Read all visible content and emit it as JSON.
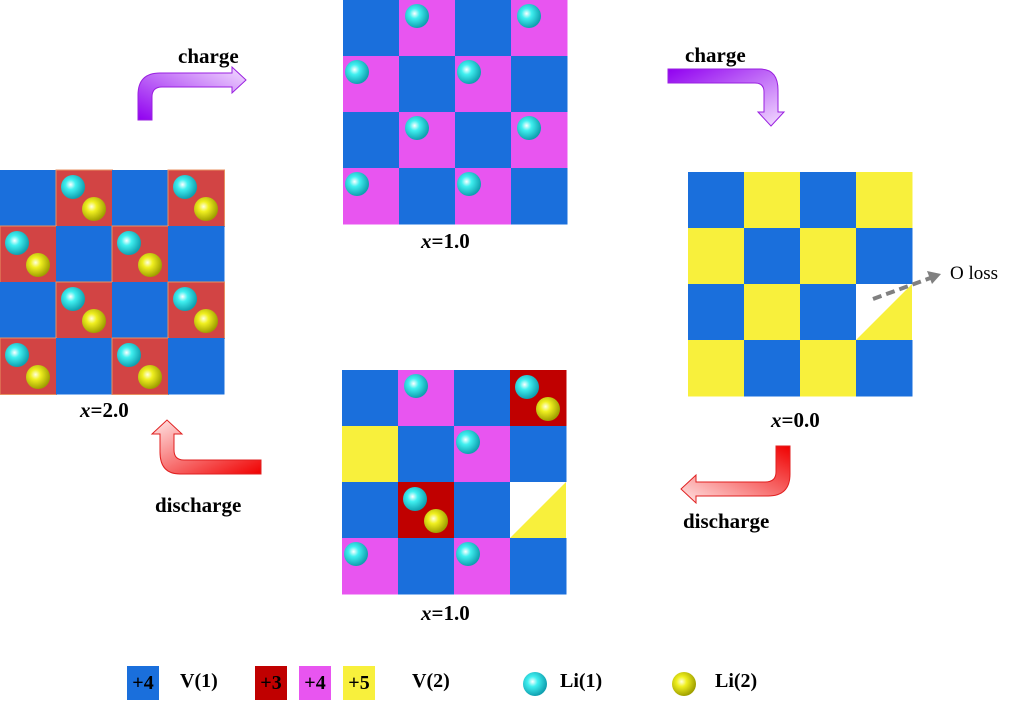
{
  "colors": {
    "v1_plus4": "#1a6fdc",
    "v2_plus3_lithiated": "#d24444",
    "v2_plus3": "#c00000",
    "v2_plus4": "#e855f0",
    "v2_plus5": "#f8f03c",
    "li1": "#22e0e0",
    "li2": "#e8e010",
    "charge_arrow": "#a020f0",
    "discharge_arrow": "#f02020",
    "o_loss_arrow": "#808080"
  },
  "grids": [
    {
      "id": "x2",
      "label_var": "x",
      "label_val": "=2.0",
      "cells": [
        [
          "B",
          "R12",
          "B",
          "R12"
        ],
        [
          "R12",
          "B",
          "R12",
          "B"
        ],
        [
          "B",
          "R12",
          "B",
          "R12"
        ],
        [
          "R12",
          "B",
          "R12",
          "B"
        ]
      ]
    },
    {
      "id": "x1-top",
      "label_var": "x",
      "label_val": "=1.0",
      "cells": [
        [
          "B",
          "P1",
          "B",
          "P1"
        ],
        [
          "P1",
          "B",
          "P1",
          "B"
        ],
        [
          "B",
          "P1",
          "B",
          "P1"
        ],
        [
          "P1",
          "B",
          "P1",
          "B"
        ]
      ]
    },
    {
      "id": "x0",
      "label_var": "x",
      "label_val": "=0.0",
      "cells": [
        [
          "B",
          "Y",
          "B",
          "Y"
        ],
        [
          "Y",
          "B",
          "Y",
          "B"
        ],
        [
          "B",
          "Y",
          "B",
          "T"
        ],
        [
          "Y",
          "B",
          "Y",
          "B"
        ]
      ]
    },
    {
      "id": "x1-bottom",
      "label_var": "x",
      "label_val": "=1.0",
      "cells": [
        [
          "B",
          "P1",
          "B",
          "D12"
        ],
        [
          "Y",
          "B",
          "P1",
          "B"
        ],
        [
          "B",
          "D12",
          "B",
          "T"
        ],
        [
          "P1",
          "B",
          "P1",
          "B"
        ]
      ]
    }
  ],
  "arrows": {
    "charge_1": "charge",
    "charge_2": "charge",
    "discharge_1": "discharge",
    "discharge_2": "discharge",
    "o_loss": "O loss"
  },
  "legend": {
    "v1_state": "+4",
    "v1_label": "V(1)",
    "v2_states": [
      "+3",
      "+4",
      "+5"
    ],
    "v2_label": "V(2)",
    "li1_label": "Li(1)",
    "li2_label": "Li(2)"
  }
}
